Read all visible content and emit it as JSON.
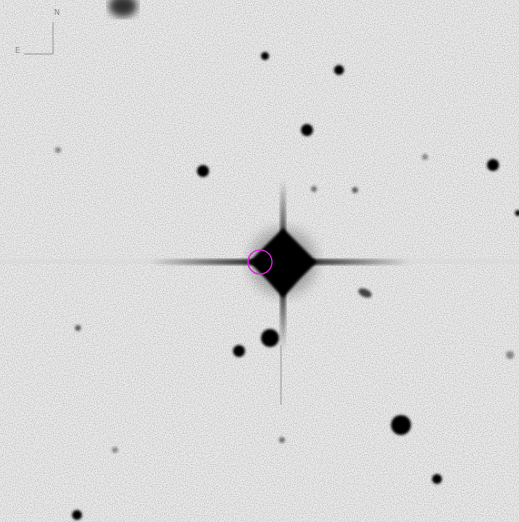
{
  "compass": {
    "north": "N",
    "east": "E"
  }
}
